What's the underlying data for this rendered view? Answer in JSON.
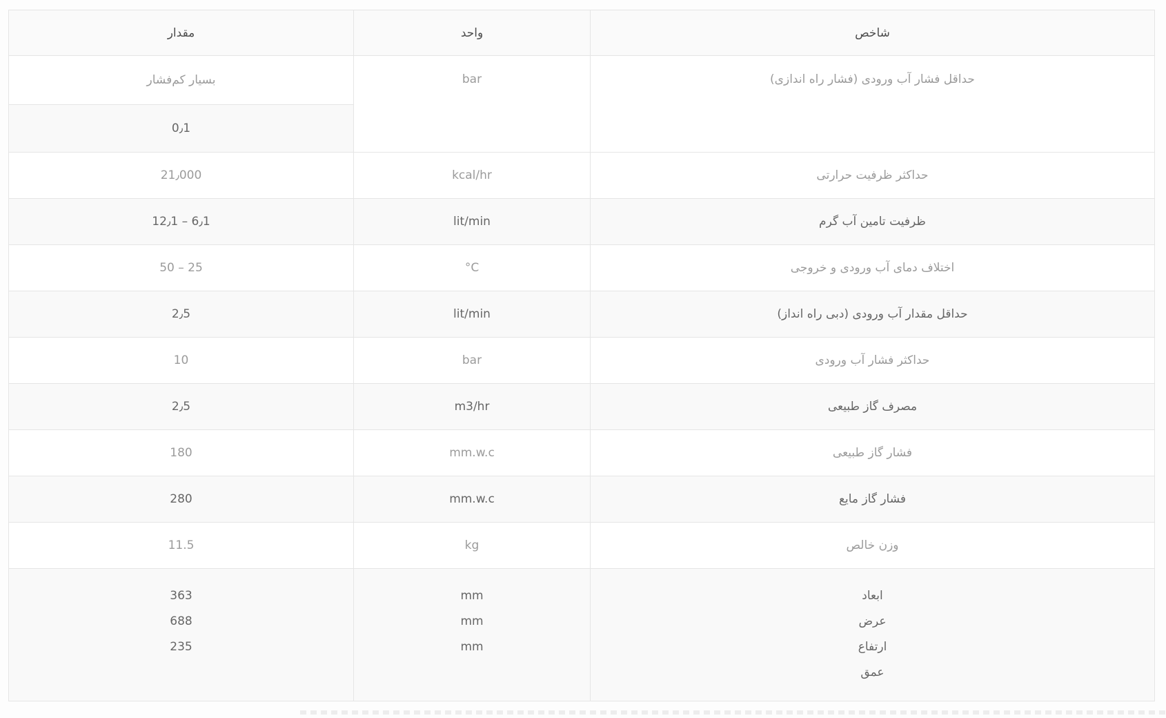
{
  "colors": {
    "page_background": "#fdfdfd",
    "table_border": "#e5e5e5",
    "header_background": "#fafafa",
    "header_text": "#4d4d4d",
    "row_text_light": "#9b9b9b",
    "row_alt_background": "#f9f9f9",
    "row_text_dark": "#666666",
    "dashed_divider": "#ededed"
  },
  "table": {
    "header": {
      "indicator": "شاخص",
      "unit": "واحد",
      "value": "مقدار"
    },
    "rows": [
      {
        "indicator": "حداقل فشار آب ورودی (فشار راه اندازی)",
        "unit": "bar",
        "value": "بسیار کم‌فشار",
        "value2": "0٫1"
      },
      {
        "indicator": "حداکثر ظرفیت حرارتی",
        "unit": "kcal/hr",
        "value": "21٫000"
      },
      {
        "indicator": "ظرفیت تامین آب گرم",
        "unit": "lit/min",
        "value": "12٫1 – 6٫1"
      },
      {
        "indicator": "اختلاف دمای آب ورودی و خروجی",
        "unit": "°C",
        "value": "50 – 25"
      },
      {
        "indicator": "حداقل مقدار آب ورودی (دبی راه انداز)",
        "unit": "lit/min",
        "value": "2٫5"
      },
      {
        "indicator": "حداکثر فشار آب ورودی",
        "unit": "bar",
        "value": "10"
      },
      {
        "indicator": "مصرف گاز طبیعی",
        "unit": "m3/hr",
        "value": "2٫5"
      },
      {
        "indicator": "فشار گاز طبیعی",
        "unit": "mm.w.c",
        "value": "180"
      },
      {
        "indicator": "فشار گاز مایع",
        "unit": "mm.w.c",
        "value": "280"
      },
      {
        "indicator": "وزن خالص",
        "unit": "kg",
        "value": "11.5"
      }
    ],
    "dimensions_row": {
      "labels": [
        "ابعاد",
        "عرض",
        "ارتفاع",
        "عمق"
      ],
      "units": [
        "mm",
        "mm",
        "mm"
      ],
      "values": [
        "363",
        "688",
        "235"
      ]
    }
  }
}
